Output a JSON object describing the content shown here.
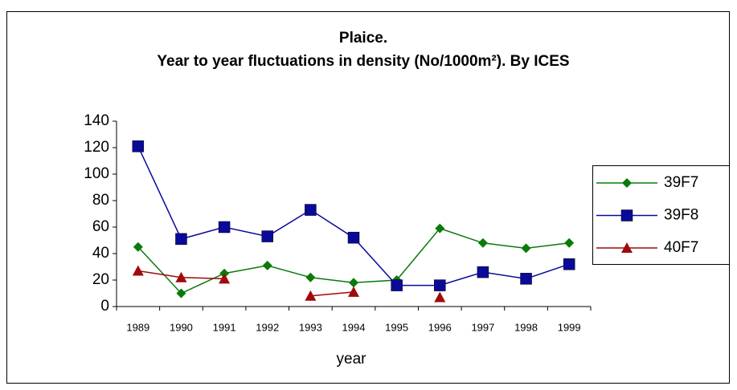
{
  "chart_data": {
    "type": "line",
    "title": "Plaice.",
    "subtitle": "Year to year fluctuations in density (No/1000m²). By ICES",
    "x_label": "year",
    "categories": [
      "1989",
      "1990",
      "1991",
      "1992",
      "1993",
      "1994",
      "1995",
      "1996",
      "1997",
      "1998",
      "1999"
    ],
    "series": [
      {
        "name": "39F7",
        "color": "#0a7a0a",
        "marker": "diamond",
        "values": [
          45,
          10,
          25,
          31,
          22,
          18,
          20,
          59,
          48,
          44,
          48
        ]
      },
      {
        "name": "39F8",
        "color": "#0a0a9a",
        "marker": "square",
        "values": [
          121,
          51,
          60,
          53,
          73,
          52,
          16,
          16,
          26,
          21,
          32
        ]
      },
      {
        "name": "40F7",
        "color": "#a00a0a",
        "marker": "triangle",
        "values": [
          27,
          22,
          21,
          null,
          8,
          11,
          null,
          7,
          null,
          null,
          null
        ]
      }
    ],
    "ylim": [
      0,
      140
    ],
    "yticks": [
      0,
      20,
      40,
      60,
      80,
      100,
      120,
      140
    ],
    "legend": "right"
  }
}
